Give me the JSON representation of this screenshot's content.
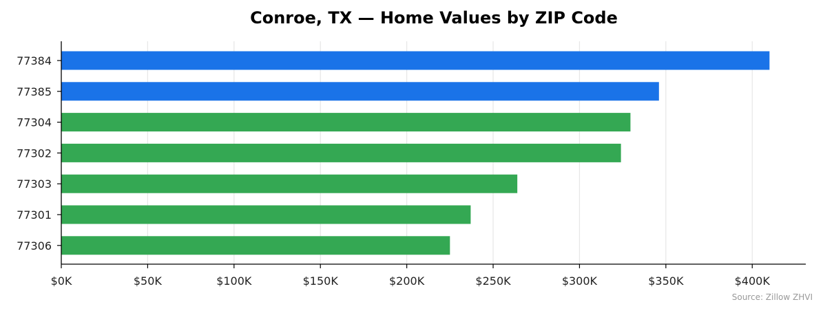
{
  "chart_data": {
    "type": "bar",
    "orientation": "horizontal",
    "title": "Conroe, TX — Home Values by ZIP Code",
    "xlabel": "",
    "ylabel": "",
    "categories": [
      "77384",
      "77385",
      "77304",
      "77302",
      "77303",
      "77301",
      "77306"
    ],
    "values": [
      410000,
      346000,
      329500,
      324000,
      264000,
      237000,
      225000
    ],
    "bar_colors": [
      "#1a73e8",
      "#1a73e8",
      "#34a853",
      "#34a853",
      "#34a853",
      "#34a853",
      "#34a853"
    ],
    "xlim": [
      0,
      431000
    ],
    "x_ticks": [
      0,
      50000,
      100000,
      150000,
      200000,
      250000,
      300000,
      350000,
      400000
    ],
    "x_tick_labels": [
      "$0K",
      "$50K",
      "$100K",
      "$150K",
      "$200K",
      "$250K",
      "$300K",
      "$350K",
      "$400K"
    ],
    "grid": "vertical",
    "grid_color": "#e6e6e6",
    "axis_color": "#000000",
    "legend": "none",
    "source_note": "Source: Zillow ZHVI"
  }
}
